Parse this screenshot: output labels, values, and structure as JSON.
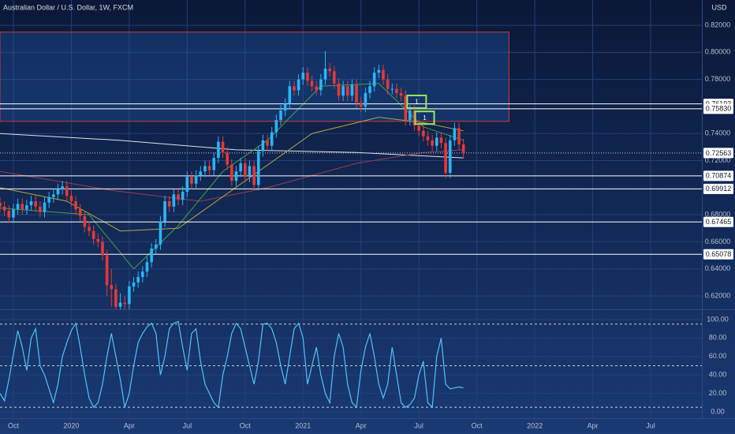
{
  "chart_data": {
    "type": "candlestick",
    "title": "Australian Dollar / U.S. Dollar, 1W, FXCM",
    "currency": "USD",
    "up_color": "#29b6f6",
    "down_color": "#e53935",
    "xlim": [
      0,
      157.5
    ],
    "xticks": [
      {
        "value": 3,
        "label": "Oct"
      },
      {
        "value": 16,
        "label": "2020"
      },
      {
        "value": 29,
        "label": "Apr"
      },
      {
        "value": 42,
        "label": "Jul"
      },
      {
        "value": 55,
        "label": "Oct"
      },
      {
        "value": 68,
        "label": "2021"
      },
      {
        "value": 81,
        "label": "Apr"
      },
      {
        "value": 94,
        "label": "Jul"
      },
      {
        "value": 107,
        "label": "Oct"
      },
      {
        "value": 120,
        "label": "2022"
      },
      {
        "value": 133,
        "label": "Apr"
      },
      {
        "value": 146,
        "label": "Jul"
      }
    ],
    "ylim": [
      0.6101,
      0.8387
    ],
    "yticks": [
      {
        "value": 0.82,
        "label": "0.82000"
      },
      {
        "value": 0.8,
        "label": "0.80000"
      },
      {
        "value": 0.78,
        "label": "0.78000"
      },
      {
        "value": 0.74,
        "label": "0.74000"
      },
      {
        "value": 0.72,
        "label": "0.72000"
      },
      {
        "value": 0.68,
        "label": "0.68000"
      },
      {
        "value": 0.66,
        "label": "0.66000"
      },
      {
        "value": 0.64,
        "label": "0.64000"
      },
      {
        "value": 0.62,
        "label": "0.62000"
      }
    ],
    "grid": true,
    "candles": [
      [
        0.689,
        0.693,
        0.682,
        0.686
      ],
      [
        0.686,
        0.69,
        0.679,
        0.683
      ],
      [
        0.683,
        0.687,
        0.674,
        0.678
      ],
      [
        0.678,
        0.688,
        0.674,
        0.684
      ],
      [
        0.684,
        0.692,
        0.68,
        0.688
      ],
      [
        0.688,
        0.692,
        0.68,
        0.684
      ],
      [
        0.684,
        0.691,
        0.68,
        0.687
      ],
      [
        0.687,
        0.694,
        0.683,
        0.69
      ],
      [
        0.69,
        0.694,
        0.682,
        0.686
      ],
      [
        0.686,
        0.69,
        0.678,
        0.682
      ],
      [
        0.682,
        0.693,
        0.678,
        0.689
      ],
      [
        0.689,
        0.697,
        0.685,
        0.693
      ],
      [
        0.693,
        0.699,
        0.689,
        0.695
      ],
      [
        0.695,
        0.703,
        0.691,
        0.699
      ],
      [
        0.699,
        0.705,
        0.695,
        0.701
      ],
      [
        0.701,
        0.705,
        0.69,
        0.694
      ],
      [
        0.694,
        0.698,
        0.686,
        0.69
      ],
      [
        0.69,
        0.694,
        0.68,
        0.684
      ],
      [
        0.684,
        0.688,
        0.675,
        0.679
      ],
      [
        0.679,
        0.683,
        0.667,
        0.671
      ],
      [
        0.671,
        0.675,
        0.664,
        0.668
      ],
      [
        0.668,
        0.672,
        0.658,
        0.662
      ],
      [
        0.662,
        0.666,
        0.656,
        0.66
      ],
      [
        0.66,
        0.664,
        0.646,
        0.65
      ],
      [
        0.65,
        0.654,
        0.62,
        0.628
      ],
      [
        0.628,
        0.64,
        0.612,
        0.625
      ],
      [
        0.625,
        0.629,
        0.608,
        0.612
      ],
      [
        0.612,
        0.622,
        0.608,
        0.615
      ],
      [
        0.615,
        0.62,
        0.61,
        0.614
      ],
      [
        0.614,
        0.631,
        0.61,
        0.627
      ],
      [
        0.627,
        0.634,
        0.623,
        0.63
      ],
      [
        0.63,
        0.638,
        0.626,
        0.634
      ],
      [
        0.634,
        0.642,
        0.63,
        0.638
      ],
      [
        0.638,
        0.649,
        0.634,
        0.645
      ],
      [
        0.645,
        0.659,
        0.641,
        0.655
      ],
      [
        0.655,
        0.662,
        0.651,
        0.658
      ],
      [
        0.658,
        0.679,
        0.654,
        0.675
      ],
      [
        0.675,
        0.694,
        0.671,
        0.69
      ],
      [
        0.69,
        0.694,
        0.682,
        0.686
      ],
      [
        0.686,
        0.699,
        0.682,
        0.695
      ],
      [
        0.695,
        0.699,
        0.687,
        0.691
      ],
      [
        0.691,
        0.701,
        0.687,
        0.697
      ],
      [
        0.697,
        0.712,
        0.693,
        0.708
      ],
      [
        0.708,
        0.712,
        0.699,
        0.703
      ],
      [
        0.703,
        0.713,
        0.699,
        0.709
      ],
      [
        0.709,
        0.716,
        0.705,
        0.712
      ],
      [
        0.712,
        0.72,
        0.708,
        0.716
      ],
      [
        0.716,
        0.72,
        0.709,
        0.713
      ],
      [
        0.713,
        0.726,
        0.709,
        0.722
      ],
      [
        0.722,
        0.738,
        0.718,
        0.734
      ],
      [
        0.734,
        0.738,
        0.722,
        0.726
      ],
      [
        0.726,
        0.73,
        0.713,
        0.717
      ],
      [
        0.717,
        0.721,
        0.701,
        0.705
      ],
      [
        0.705,
        0.716,
        0.701,
        0.712
      ],
      [
        0.712,
        0.722,
        0.708,
        0.718
      ],
      [
        0.718,
        0.722,
        0.704,
        0.708
      ],
      [
        0.708,
        0.72,
        0.704,
        0.716
      ],
      [
        0.716,
        0.72,
        0.698,
        0.702
      ],
      [
        0.702,
        0.731,
        0.698,
        0.727
      ],
      [
        0.727,
        0.739,
        0.723,
        0.735
      ],
      [
        0.735,
        0.739,
        0.727,
        0.731
      ],
      [
        0.731,
        0.745,
        0.727,
        0.741
      ],
      [
        0.741,
        0.754,
        0.737,
        0.75
      ],
      [
        0.75,
        0.761,
        0.746,
        0.757
      ],
      [
        0.757,
        0.766,
        0.753,
        0.762
      ],
      [
        0.762,
        0.779,
        0.758,
        0.775
      ],
      [
        0.775,
        0.779,
        0.768,
        0.772
      ],
      [
        0.772,
        0.784,
        0.768,
        0.78
      ],
      [
        0.78,
        0.789,
        0.776,
        0.785
      ],
      [
        0.785,
        0.789,
        0.775,
        0.779
      ],
      [
        0.779,
        0.783,
        0.771,
        0.775
      ],
      [
        0.775,
        0.779,
        0.768,
        0.772
      ],
      [
        0.772,
        0.784,
        0.768,
        0.78
      ],
      [
        0.78,
        0.801,
        0.776,
        0.788
      ],
      [
        0.788,
        0.792,
        0.782,
        0.786
      ],
      [
        0.786,
        0.79,
        0.773,
        0.777
      ],
      [
        0.777,
        0.781,
        0.764,
        0.768
      ],
      [
        0.768,
        0.779,
        0.764,
        0.775
      ],
      [
        0.775,
        0.779,
        0.764,
        0.768
      ],
      [
        0.768,
        0.78,
        0.764,
        0.776
      ],
      [
        0.776,
        0.78,
        0.759,
        0.763
      ],
      [
        0.763,
        0.767,
        0.756,
        0.76
      ],
      [
        0.76,
        0.774,
        0.756,
        0.77
      ],
      [
        0.77,
        0.779,
        0.766,
        0.775
      ],
      [
        0.775,
        0.789,
        0.771,
        0.785
      ],
      [
        0.785,
        0.791,
        0.781,
        0.787
      ],
      [
        0.787,
        0.791,
        0.776,
        0.78
      ],
      [
        0.78,
        0.784,
        0.769,
        0.773
      ],
      [
        0.773,
        0.777,
        0.769,
        0.773
      ],
      [
        0.773,
        0.777,
        0.766,
        0.77
      ],
      [
        0.77,
        0.774,
        0.764,
        0.768
      ],
      [
        0.768,
        0.772,
        0.746,
        0.75
      ],
      [
        0.75,
        0.761,
        0.746,
        0.757
      ],
      [
        0.757,
        0.761,
        0.742,
        0.746
      ],
      [
        0.746,
        0.75,
        0.738,
        0.742
      ],
      [
        0.742,
        0.746,
        0.734,
        0.738
      ],
      [
        0.738,
        0.742,
        0.731,
        0.735
      ],
      [
        0.735,
        0.739,
        0.727,
        0.731
      ],
      [
        0.731,
        0.741,
        0.727,
        0.737
      ],
      [
        0.737,
        0.741,
        0.729,
        0.733
      ],
      [
        0.733,
        0.737,
        0.707,
        0.711
      ],
      [
        0.711,
        0.739,
        0.707,
        0.735
      ],
      [
        0.735,
        0.748,
        0.731,
        0.744
      ],
      [
        0.744,
        0.748,
        0.728,
        0.732
      ],
      [
        0.732,
        0.736,
        0.722,
        0.726
      ]
    ],
    "moving_averages": [
      {
        "color": "#dfe3ea",
        "x": [
          0,
          27,
          53,
          80,
          104
        ],
        "values": [
          0.74,
          0.735,
          0.728,
          0.726,
          0.722
        ]
      },
      {
        "color": "#9a3d52",
        "x": [
          0,
          25,
          45,
          60,
          80,
          95,
          104
        ],
        "values": [
          0.712,
          0.698,
          0.69,
          0.7,
          0.718,
          0.726,
          0.728
        ]
      },
      {
        "color": "#b0a83c",
        "x": [
          0,
          15,
          27,
          40,
          55,
          70,
          85,
          95,
          104
        ],
        "values": [
          0.7,
          0.69,
          0.668,
          0.67,
          0.705,
          0.74,
          0.752,
          0.748,
          0.742
        ]
      },
      {
        "color": "#43a047",
        "x": [
          0,
          20,
          30,
          40,
          50,
          60,
          72,
          85,
          95,
          104
        ],
        "values": [
          0.685,
          0.68,
          0.64,
          0.672,
          0.712,
          0.735,
          0.775,
          0.777,
          0.745,
          0.735
        ]
      }
    ],
    "zone": {
      "x": [
        0,
        114.2
      ],
      "y": [
        0.749,
        0.815
      ]
    },
    "levels": [
      {
        "value": 0.76193,
        "label": "0.76193"
      },
      {
        "value": 0.7583,
        "label": "0.75830"
      },
      {
        "value": 0.70874,
        "label": "0.70874"
      },
      {
        "value": 0.69912,
        "label": "0.69912"
      },
      {
        "value": 0.67465,
        "label": "0.67465"
      },
      {
        "value": 0.65078,
        "label": "0.65078"
      }
    ],
    "last_price": {
      "value": 0.72563,
      "label": "0.72563"
    },
    "markers": [
      {
        "x": 93.5,
        "y": 0.7635,
        "label": "1"
      },
      {
        "x": 95.3,
        "y": 0.7517,
        "label": "1"
      }
    ],
    "indicator": {
      "type": "line",
      "color": "#4fc3f7",
      "ylim": [
        -6.8,
        110.2
      ],
      "yticks": [
        {
          "value": 100,
          "label": "100.00"
        },
        {
          "value": 80,
          "label": "80.00"
        },
        {
          "value": 60,
          "label": "60.00"
        },
        {
          "value": 40,
          "label": "40.00"
        },
        {
          "value": 20,
          "label": "20.00"
        },
        {
          "value": 0,
          "label": "0.00"
        }
      ],
      "bands": [
        95,
        50,
        5
      ],
      "values": [
        20,
        12,
        35,
        62,
        88,
        70,
        45,
        80,
        90,
        50,
        40,
        25,
        10,
        30,
        60,
        75,
        88,
        96,
        70,
        40,
        15,
        5,
        10,
        30,
        60,
        85,
        60,
        35,
        5,
        20,
        50,
        75,
        85,
        92,
        96,
        85,
        40,
        60,
        90,
        96,
        98,
        70,
        45,
        85,
        90,
        55,
        30,
        20,
        10,
        5,
        40,
        60,
        85,
        96,
        90,
        70,
        50,
        30,
        55,
        95,
        96,
        90,
        75,
        50,
        30,
        60,
        90,
        96,
        80,
        30,
        50,
        70,
        40,
        20,
        10,
        60,
        85,
        70,
        30,
        10,
        5,
        45,
        70,
        85,
        60,
        30,
        15,
        30,
        70,
        40,
        10,
        5,
        8,
        15,
        40,
        55,
        10,
        5,
        60,
        80,
        30,
        25,
        26,
        27,
        26
      ]
    }
  }
}
